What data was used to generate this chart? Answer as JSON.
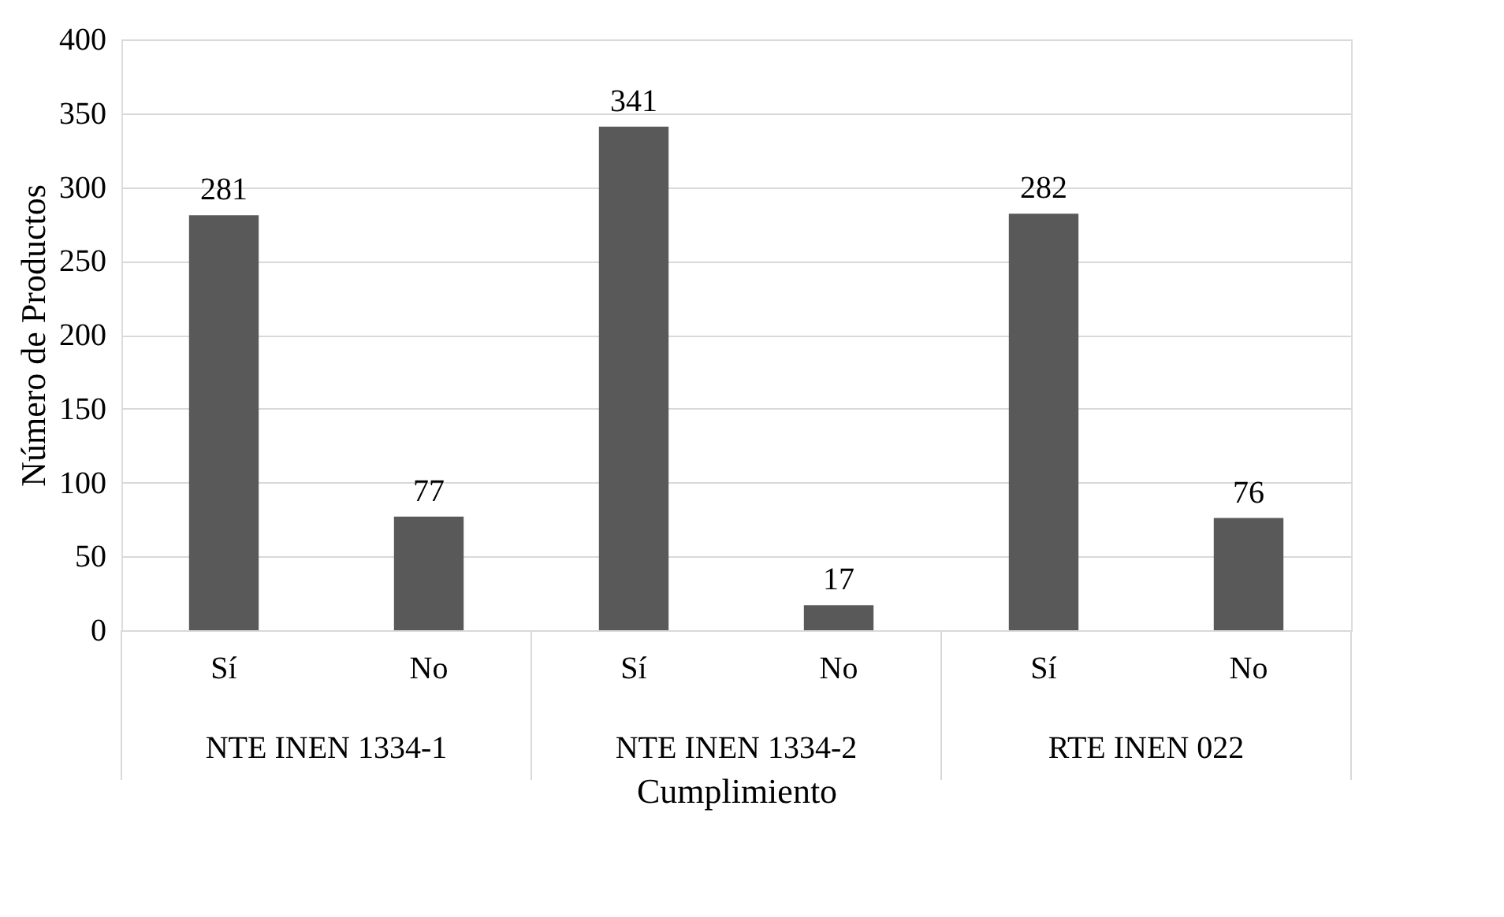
{
  "chart_data": {
    "type": "bar",
    "categories": [
      "Sí",
      "No",
      "Sí",
      "No",
      "Sí",
      "No"
    ],
    "values": [
      281,
      77,
      341,
      17,
      282,
      76
    ],
    "color": "#595959",
    "xlabel": "Cumplimiento",
    "ylabel": "Número de Productos",
    "annotations": [
      "NTE INEN 1334-1",
      "NTE INEN 1334-2",
      "RTE INEN 022"
    ],
    "ylim": [
      0,
      400
    ],
    "yticks": [
      0,
      50,
      100,
      150,
      200,
      250,
      300,
      350,
      400
    ],
    "grid": "y",
    "data_labels": true
  }
}
